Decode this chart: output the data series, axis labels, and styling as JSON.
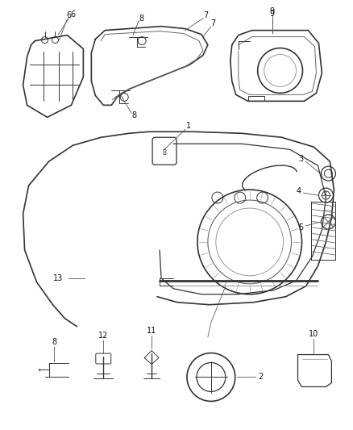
{
  "bg_color": "#ffffff",
  "line_color": "#333333",
  "fig_width": 4.38,
  "fig_height": 5.33,
  "dpi": 100
}
